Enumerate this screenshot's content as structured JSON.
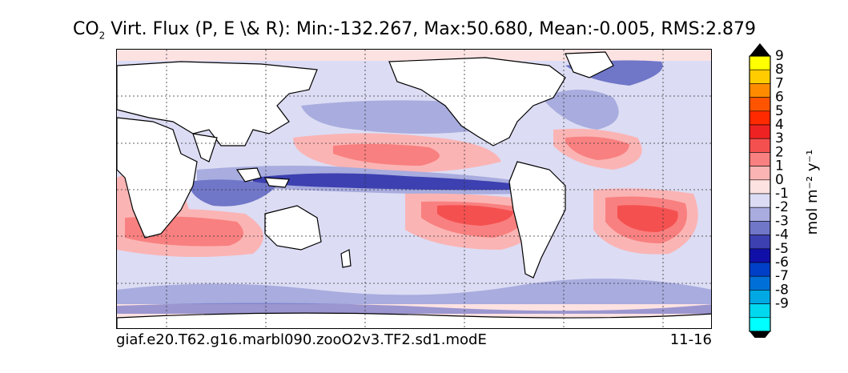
{
  "title": {
    "prefix": "CO",
    "subscript": "2",
    "rest": "Virt. Flux (P, E \\& R): Min:-132.267, Max:50.680, Mean:-0.005, RMS:2.879"
  },
  "footer": {
    "case_name": "giaf.e20.T62.g16.marbl090.zooO2v3.TF2.sd1.modE",
    "date_range": "11-16"
  },
  "colorbar": {
    "label": "mol m⁻² y⁻¹",
    "levels": [
      {
        "label": "9",
        "color": "#ffff00"
      },
      {
        "label": "8",
        "color": "#ffcc00"
      },
      {
        "label": "7",
        "color": "#ff8c00"
      },
      {
        "label": "6",
        "color": "#ff5500"
      },
      {
        "label": "5",
        "color": "#ff2a00"
      },
      {
        "label": "4",
        "color": "#ee2222"
      },
      {
        "label": "3",
        "color": "#f55050"
      },
      {
        "label": "2",
        "color": "#f98080"
      },
      {
        "label": "1",
        "color": "#fbb4b4"
      },
      {
        "label": "0",
        "color": "#fde2e2"
      },
      {
        "label": "-1",
        "color": "#dcdcf4"
      },
      {
        "label": "-2",
        "color": "#a8acde"
      },
      {
        "label": "-3",
        "color": "#7076c8"
      },
      {
        "label": "-4",
        "color": "#3c40b0"
      },
      {
        "label": "-5",
        "color": "#1010a8"
      },
      {
        "label": "-6",
        "color": "#0040c8"
      },
      {
        "label": "-7",
        "color": "#0070d8"
      },
      {
        "label": "-8",
        "color": "#00a8e4"
      },
      {
        "label": "-9",
        "color": "#00d8f0"
      }
    ],
    "over_color": "#000000",
    "under_color": "#000000",
    "lowest_color": "#00ffff"
  },
  "map": {
    "projection": "cylindrical",
    "land_color": "#ffffff",
    "gridlines": "dotted",
    "field": "co2-virtual-flux"
  }
}
